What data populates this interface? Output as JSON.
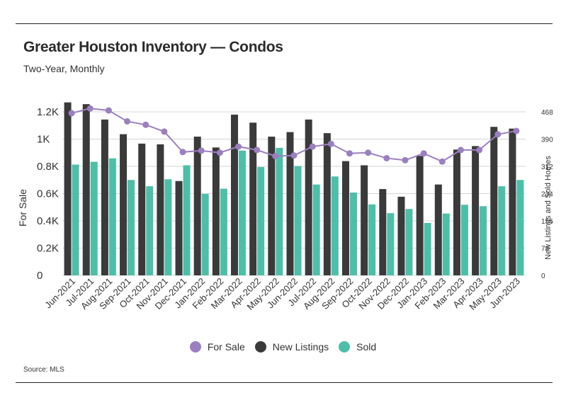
{
  "header": {
    "title": "Greater Houston Inventory — Condos",
    "subtitle": "Two-Year, Monthly"
  },
  "footer": {
    "source": "Source:  MLS"
  },
  "colors": {
    "for_sale": "#9b7fc0",
    "new_listings": "#3a3a3a",
    "sold": "#4dbfa8",
    "grid": "#d6d6d6"
  },
  "chart_data": {
    "type": "bar",
    "categories": [
      "Jun-2021",
      "Jul-2021",
      "Aug-2021",
      "Sep-2021",
      "Oct-2021",
      "Nov-2021",
      "Dec-2021",
      "Jan-2022",
      "Feb-2022",
      "Mar-2022",
      "Apr-2022",
      "May-2022",
      "Jun-2022",
      "Jul-2022",
      "Aug-2022",
      "Sep-2022",
      "Oct-2022",
      "Nov-2022",
      "Dec-2022",
      "Jan-2023",
      "Feb-2023",
      "Mar-2023",
      "Apr-2023",
      "May-2023",
      "Jun-2023"
    ],
    "ylabel_left": "For Sale",
    "ylabel_right": "New Listings and Sold Homes",
    "left_axis": {
      "ticks": [
        "0",
        "0.2K",
        "0.4K",
        "0.6K",
        "0.8K",
        "1K",
        "1.2K"
      ],
      "ylim": [
        0,
        1200
      ]
    },
    "right_axis": {
      "ticks": [
        "0",
        "78",
        "156",
        "234",
        "312",
        "390",
        "468"
      ],
      "ylim": [
        0,
        468
      ]
    },
    "series": [
      {
        "name": "For Sale",
        "type": "line",
        "axis": "left",
        "values": [
          1190,
          1225,
          1210,
          1130,
          1105,
          1055,
          905,
          915,
          900,
          945,
          920,
          875,
          880,
          945,
          965,
          895,
          900,
          860,
          845,
          895,
          835,
          920,
          920,
          1035,
          1060
        ]
      },
      {
        "name": "New Listings",
        "type": "bar",
        "axis": "right",
        "values": [
          495,
          490,
          446,
          404,
          377,
          375,
          270,
          397,
          366,
          460,
          437,
          397,
          410,
          446,
          407,
          327,
          315,
          247,
          225,
          342,
          260,
          360,
          370,
          425,
          420
        ]
      },
      {
        "name": "Sold",
        "type": "bar",
        "axis": "right",
        "values": [
          317,
          325,
          335,
          273,
          255,
          275,
          315,
          233,
          248,
          357,
          310,
          365,
          313,
          260,
          283,
          237,
          203,
          178,
          190,
          150,
          177,
          202,
          198,
          255,
          273
        ]
      }
    ],
    "legend": [
      "For Sale",
      "New Listings",
      "Sold"
    ],
    "legend_position": "bottom",
    "grid": true
  }
}
